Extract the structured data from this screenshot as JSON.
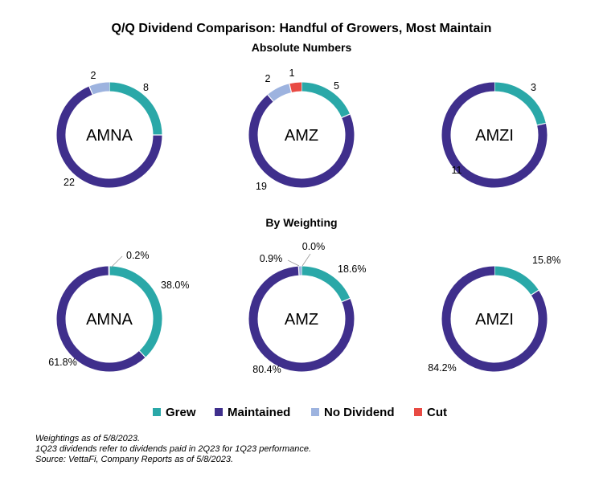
{
  "title": "Q/Q Dividend Comparison: Handful of Growers, Most Maintain",
  "legend": [
    {
      "key": "grew",
      "label": "Grew",
      "color": "#2AA8A8"
    },
    {
      "key": "maintained",
      "label": "Maintained",
      "color": "#3F2F8C"
    },
    {
      "key": "no_dividend",
      "label": "No Dividend",
      "color": "#9DB3DF"
    },
    {
      "key": "cut",
      "label": "Cut",
      "color": "#E84A43"
    }
  ],
  "chart_data": [
    {
      "type": "pie",
      "donut": true,
      "group": "Absolute Numbers",
      "center_label": "AMNA",
      "categories": [
        "Grew",
        "Maintained",
        "No Dividend"
      ],
      "values": [
        8,
        22,
        2
      ],
      "data_labels": [
        "8",
        "22",
        "2"
      ]
    },
    {
      "type": "pie",
      "donut": true,
      "group": "Absolute Numbers",
      "center_label": "AMZ",
      "categories": [
        "Grew",
        "Maintained",
        "No Dividend",
        "Cut"
      ],
      "values": [
        5,
        19,
        2,
        1
      ],
      "data_labels": [
        "5",
        "19",
        "2",
        "1"
      ]
    },
    {
      "type": "pie",
      "donut": true,
      "group": "Absolute Numbers",
      "center_label": "AMZI",
      "categories": [
        "Grew",
        "Maintained"
      ],
      "values": [
        3,
        11
      ],
      "data_labels": [
        "3",
        "11"
      ]
    },
    {
      "type": "pie",
      "donut": true,
      "group": "By Weighting",
      "center_label": "AMNA",
      "categories": [
        "Grew",
        "Maintained",
        "No Dividend"
      ],
      "values": [
        38.0,
        61.8,
        0.2
      ],
      "data_labels": [
        "38.0%",
        "61.8%",
        "0.2%"
      ]
    },
    {
      "type": "pie",
      "donut": true,
      "group": "By Weighting",
      "center_label": "AMZ",
      "categories": [
        "Grew",
        "Maintained",
        "No Dividend",
        "Cut"
      ],
      "values": [
        18.6,
        80.4,
        0.9,
        0.0
      ],
      "data_labels": [
        "18.6%",
        "80.4%",
        "0.9%",
        "0.0%"
      ]
    },
    {
      "type": "pie",
      "donut": true,
      "group": "By Weighting",
      "center_label": "AMZI",
      "categories": [
        "Grew",
        "Maintained"
      ],
      "values": [
        15.8,
        84.2
      ],
      "data_labels": [
        "15.8%",
        "84.2%"
      ]
    }
  ],
  "groups": {
    "absolute": "Absolute Numbers",
    "weighting": "By Weighting"
  },
  "footnotes": [
    "Weightings as of 5/8/2023.",
    "1Q23 dividends refer to dividends paid in 2Q23 for 1Q23 performance.",
    "Source: VettaFi, Company Reports as of 5/8/2023."
  ]
}
